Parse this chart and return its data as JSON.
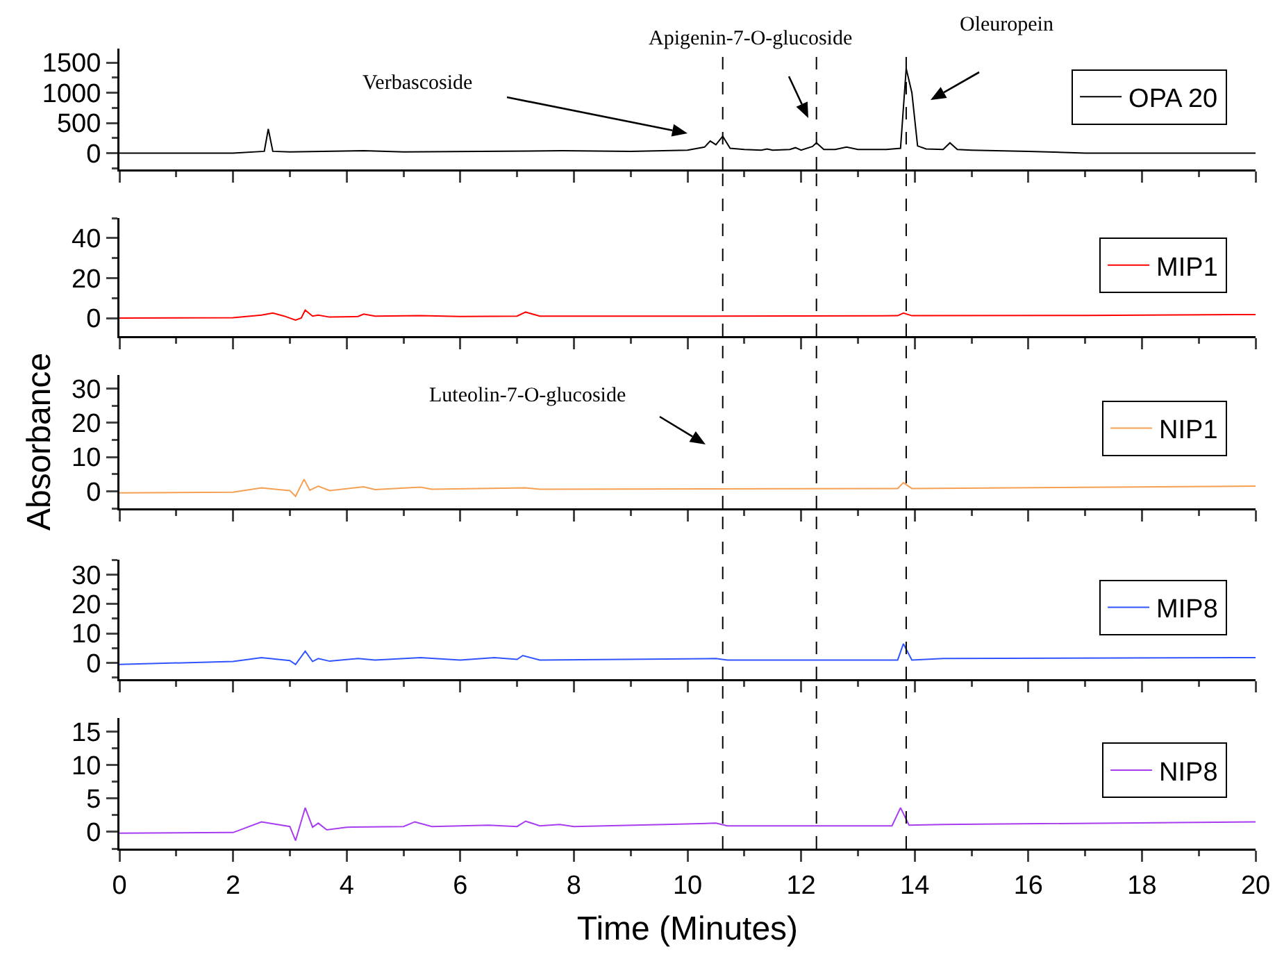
{
  "chart_data": [
    {
      "type": "line",
      "x": [
        0,
        2.0,
        2.55,
        2.62,
        2.7,
        3,
        4.3,
        5,
        7.8,
        9,
        10,
        10.3,
        10.4,
        10.5,
        10.62,
        10.75,
        11,
        11.3,
        11.4,
        11.5,
        11.8,
        11.9,
        12,
        12.2,
        12.27,
        12.4,
        12.6,
        12.8,
        13,
        13.5,
        13.75,
        13.85,
        13.95,
        14.05,
        14.2,
        14.5,
        14.62,
        14.75,
        15,
        16,
        17,
        20
      ],
      "series": [
        {
          "name": "OPA 20",
          "color": "#000000",
          "values": [
            0,
            0,
            30,
            400,
            30,
            20,
            40,
            20,
            40,
            30,
            50,
            100,
            200,
            140,
            280,
            80,
            60,
            50,
            70,
            50,
            60,
            90,
            50,
            110,
            170,
            60,
            60,
            100,
            60,
            60,
            80,
            1400,
            1000,
            120,
            70,
            60,
            170,
            60,
            50,
            30,
            0,
            0
          ]
        }
      ],
      "xlim": [
        0,
        20
      ],
      "xticks": [
        0,
        2,
        4,
        6,
        8,
        10,
        12,
        14,
        16,
        18,
        20
      ],
      "ylim": [
        -270,
        1730
      ],
      "yticks": [
        0,
        500,
        1000,
        1500
      ],
      "legend": "right",
      "tick_labels": "y",
      "ref_lines": [
        {
          "axis": "x",
          "value": 10.62
        },
        {
          "axis": "x",
          "value": 12.27
        },
        {
          "axis": "x",
          "value": 13.85
        }
      ],
      "annotations": [
        "Verbascoside",
        "Apigenin-7-O-glucoside",
        "Oleuropein"
      ]
    },
    {
      "type": "line",
      "x": [
        0,
        2,
        2.5,
        2.7,
        2.9,
        3.1,
        3.2,
        3.27,
        3.4,
        3.5,
        3.7,
        4.2,
        4.3,
        4.5,
        5.3,
        6,
        7,
        7.15,
        7.4,
        10,
        13.7,
        13.8,
        13.95,
        17,
        20
      ],
      "series": [
        {
          "name": "MIP1",
          "color": "#ff0000",
          "values": [
            0,
            0.2,
            1.5,
            2.5,
            1,
            -1,
            0,
            4,
            1,
            1.5,
            0.5,
            0.8,
            2,
            1,
            1.2,
            0.8,
            1,
            3,
            1,
            1,
            1.2,
            2.5,
            1.2,
            1.3,
            1.8
          ]
        }
      ],
      "xlim": [
        0,
        20
      ],
      "xticks": [
        0,
        2,
        4,
        6,
        8,
        10,
        12,
        14,
        16,
        18,
        20
      ],
      "ylim": [
        -9,
        50
      ],
      "yticks": [
        0,
        20,
        40
      ],
      "legend": "right",
      "tick_labels": "y",
      "ref_lines": [
        {
          "axis": "x",
          "value": 10.62
        },
        {
          "axis": "x",
          "value": 12.27
        },
        {
          "axis": "x",
          "value": 13.85
        }
      ]
    },
    {
      "type": "line",
      "x": [
        0,
        2,
        2.5,
        2.8,
        3.0,
        3.1,
        3.25,
        3.35,
        3.5,
        3.7,
        4.3,
        4.5,
        5.3,
        5.5,
        7.15,
        7.4,
        13.7,
        13.8,
        13.95,
        20
      ],
      "series": [
        {
          "name": "NIP1",
          "color": "#f5a052",
          "values": [
            -0.5,
            -0.3,
            1,
            0.5,
            0.2,
            -1.5,
            3.5,
            0.3,
            1.5,
            0.2,
            1.3,
            0.5,
            1.2,
            0.6,
            1,
            0.6,
            0.8,
            2.5,
            0.8,
            1.5
          ]
        }
      ],
      "xlim": [
        0,
        20
      ],
      "xticks": [
        0,
        2,
        4,
        6,
        8,
        10,
        12,
        14,
        16,
        18,
        20
      ],
      "ylim": [
        -5,
        34
      ],
      "yticks": [
        0,
        10,
        20,
        30
      ],
      "legend": "right",
      "tick_labels": "y",
      "ylabel": "Absorbance",
      "ref_lines": [
        {
          "axis": "x",
          "value": 10.62
        },
        {
          "axis": "x",
          "value": 12.27
        },
        {
          "axis": "x",
          "value": 13.85
        }
      ],
      "annotations": [
        "Luteolin-7-O-glucoside"
      ]
    },
    {
      "type": "line",
      "x": [
        0,
        2.0,
        2.5,
        3.0,
        3.1,
        3.27,
        3.4,
        3.5,
        3.7,
        4.2,
        4.5,
        5.3,
        6,
        6.6,
        7,
        7.1,
        7.4,
        10.5,
        10.7,
        13.7,
        13.8,
        13.95,
        14.5,
        20
      ],
      "series": [
        {
          "name": "MIP8",
          "color": "#2f54ff",
          "values": [
            -0.5,
            0.5,
            1.8,
            0.8,
            -0.5,
            4,
            0.5,
            1.5,
            0.6,
            1.5,
            1,
            1.8,
            1,
            1.8,
            1.2,
            2.5,
            1,
            1.5,
            1,
            1,
            6.5,
            1,
            1.5,
            1.8
          ]
        }
      ],
      "xlim": [
        0,
        20
      ],
      "xticks": [
        0,
        2,
        4,
        6,
        8,
        10,
        12,
        14,
        16,
        18,
        20
      ],
      "ylim": [
        -5.5,
        35
      ],
      "yticks": [
        0,
        10,
        20,
        30
      ],
      "legend": "right",
      "tick_labels": "y",
      "ref_lines": [
        {
          "axis": "x",
          "value": 10.62
        },
        {
          "axis": "x",
          "value": 12.27
        },
        {
          "axis": "x",
          "value": 13.85
        }
      ]
    },
    {
      "type": "line",
      "x": [
        0,
        2.0,
        2.5,
        3.0,
        3.1,
        3.27,
        3.4,
        3.5,
        3.65,
        4.0,
        5.0,
        5.2,
        5.5,
        6.5,
        7.0,
        7.15,
        7.4,
        7.75,
        8,
        9.6,
        10.5,
        10.7,
        13.6,
        13.75,
        13.9,
        14.5,
        20
      ],
      "series": [
        {
          "name": "NIP8",
          "color": "#a83cf0",
          "values": [
            -0.2,
            -0.1,
            1.5,
            0.8,
            -1.3,
            3.6,
            0.7,
            1.3,
            0.3,
            0.7,
            0.8,
            1.5,
            0.8,
            1,
            0.8,
            1.6,
            0.9,
            1.1,
            0.8,
            1.1,
            1.3,
            0.9,
            0.9,
            3.6,
            1,
            1.1,
            1.5
          ]
        }
      ],
      "xlim": [
        0,
        20
      ],
      "xticks": [
        0,
        2,
        4,
        6,
        8,
        10,
        12,
        14,
        16,
        18,
        20
      ],
      "ylim": [
        -2.5,
        17
      ],
      "yticks": [
        0,
        5,
        10,
        15
      ],
      "legend": "right",
      "xlabel": "Time (Minutes)",
      "ref_lines": [
        {
          "axis": "x",
          "value": 10.62
        },
        {
          "axis": "x",
          "value": 12.27
        },
        {
          "axis": "x",
          "value": 13.85
        }
      ]
    }
  ]
}
